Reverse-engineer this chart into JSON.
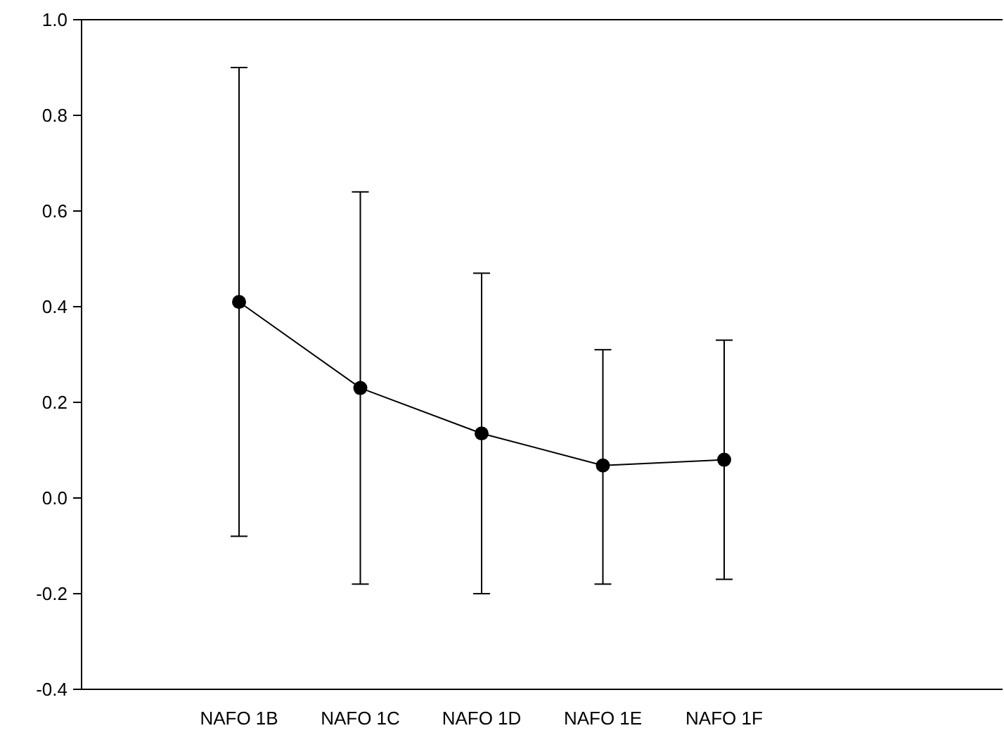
{
  "chart_data": {
    "type": "line",
    "categories": [
      "NAFO 1B",
      "NAFO 1C",
      "NAFO 1D",
      "NAFO 1E",
      "NAFO 1F"
    ],
    "values": [
      0.41,
      0.23,
      0.135,
      0.068,
      0.08
    ],
    "errors": [
      [
        -0.08,
        0.9
      ],
      [
        -0.18,
        0.64
      ],
      [
        -0.2,
        0.47
      ],
      [
        -0.18,
        0.31
      ],
      [
        -0.17,
        0.33
      ]
    ],
    "color": "#000000",
    "marker": "circle",
    "line_style": "solid",
    "ylim": [
      -0.4,
      1.0
    ],
    "yticks": [
      {
        "value": -0.4,
        "label": "-0.4"
      },
      {
        "value": -0.2,
        "label": "-0.2"
      },
      {
        "value": 0,
        "label": "0.0"
      },
      {
        "value": 0.2,
        "label": "0.2"
      },
      {
        "value": 0.4,
        "label": "0.4"
      },
      {
        "value": 0.6,
        "label": "0.6"
      },
      {
        "value": 0.8,
        "label": "0.8"
      },
      {
        "value": 1,
        "label": "1.0"
      }
    ],
    "grid": false
  }
}
